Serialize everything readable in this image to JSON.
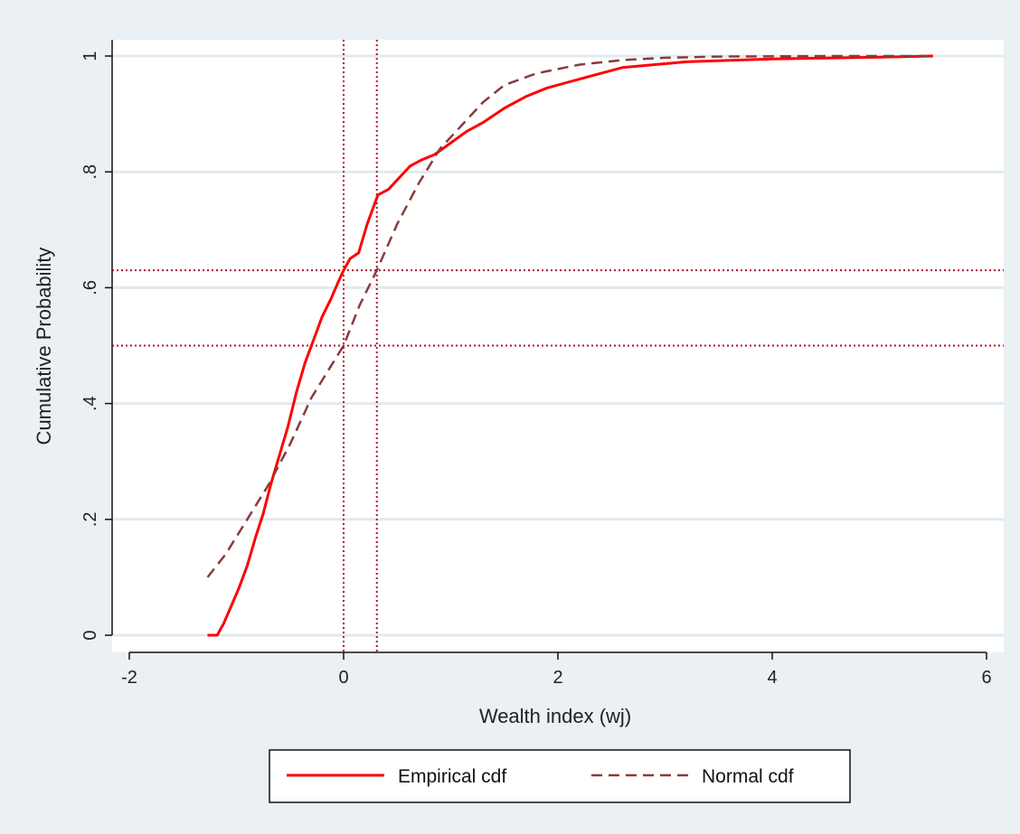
{
  "chart_data": {
    "type": "line",
    "xlabel": "Wealth index (wj)",
    "ylabel": "Cumulative Probability",
    "xlim": [
      -2,
      6
    ],
    "ylim": [
      0,
      1
    ],
    "xticks": [
      -2,
      0,
      2,
      4,
      6
    ],
    "xtick_labels": [
      "-2",
      "0",
      "2",
      "4",
      "6"
    ],
    "yticks": [
      0,
      0.2,
      0.4,
      0.6,
      0.8,
      1
    ],
    "ytick_labels": [
      "0",
      ".2",
      ".4",
      ".6",
      ".8",
      "1"
    ],
    "grid": "horizontal",
    "legend_position": "bottom",
    "series": [
      {
        "name": "Empirical cdf",
        "color": "#ff0000",
        "style": "solid",
        "points": [
          [
            -1.27,
            0.0
          ],
          [
            -1.18,
            0.0
          ],
          [
            -1.12,
            0.02
          ],
          [
            -1.05,
            0.05
          ],
          [
            -0.98,
            0.08
          ],
          [
            -0.9,
            0.12
          ],
          [
            -0.82,
            0.17
          ],
          [
            -0.75,
            0.21
          ],
          [
            -0.68,
            0.26
          ],
          [
            -0.6,
            0.31
          ],
          [
            -0.52,
            0.36
          ],
          [
            -0.44,
            0.42
          ],
          [
            -0.36,
            0.47
          ],
          [
            -0.28,
            0.51
          ],
          [
            -0.2,
            0.55
          ],
          [
            -0.12,
            0.58
          ],
          [
            -0.05,
            0.61
          ],
          [
            0.0,
            0.63
          ],
          [
            0.06,
            0.65
          ],
          [
            0.14,
            0.66
          ],
          [
            0.22,
            0.71
          ],
          [
            0.32,
            0.76
          ],
          [
            0.42,
            0.77
          ],
          [
            0.52,
            0.79
          ],
          [
            0.62,
            0.81
          ],
          [
            0.72,
            0.82
          ],
          [
            0.85,
            0.83
          ],
          [
            1.0,
            0.85
          ],
          [
            1.15,
            0.87
          ],
          [
            1.3,
            0.885
          ],
          [
            1.5,
            0.91
          ],
          [
            1.7,
            0.93
          ],
          [
            1.9,
            0.945
          ],
          [
            2.2,
            0.96
          ],
          [
            2.6,
            0.98
          ],
          [
            3.2,
            0.99
          ],
          [
            4.0,
            0.995
          ],
          [
            5.0,
            0.998
          ],
          [
            5.5,
            1.0
          ]
        ]
      },
      {
        "name": "Normal cdf",
        "color": "#8b3a3a",
        "style": "dashed",
        "points": [
          [
            -1.27,
            0.1
          ],
          [
            -1.1,
            0.14
          ],
          [
            -0.9,
            0.2
          ],
          [
            -0.7,
            0.26
          ],
          [
            -0.5,
            0.33
          ],
          [
            -0.3,
            0.41
          ],
          [
            -0.1,
            0.47
          ],
          [
            0.0,
            0.5
          ],
          [
            0.15,
            0.57
          ],
          [
            0.31,
            0.63
          ],
          [
            0.5,
            0.71
          ],
          [
            0.7,
            0.78
          ],
          [
            0.9,
            0.84
          ],
          [
            1.1,
            0.88
          ],
          [
            1.3,
            0.92
          ],
          [
            1.5,
            0.95
          ],
          [
            1.8,
            0.97
          ],
          [
            2.2,
            0.985
          ],
          [
            2.6,
            0.993
          ],
          [
            3.0,
            0.997
          ],
          [
            3.5,
            0.999
          ],
          [
            4.5,
            1.0
          ],
          [
            5.5,
            1.0
          ]
        ]
      }
    ],
    "reference_lines": {
      "vertical": [
        0.0,
        0.31
      ],
      "horizontal": [
        0.5,
        0.63
      ],
      "color": "#b01030",
      "style": "dotted"
    }
  },
  "colors": {
    "outer_background": "#eaf0f3",
    "plot_background": "#ffffff",
    "grid": "#e3eaee",
    "axis": "#111111"
  }
}
